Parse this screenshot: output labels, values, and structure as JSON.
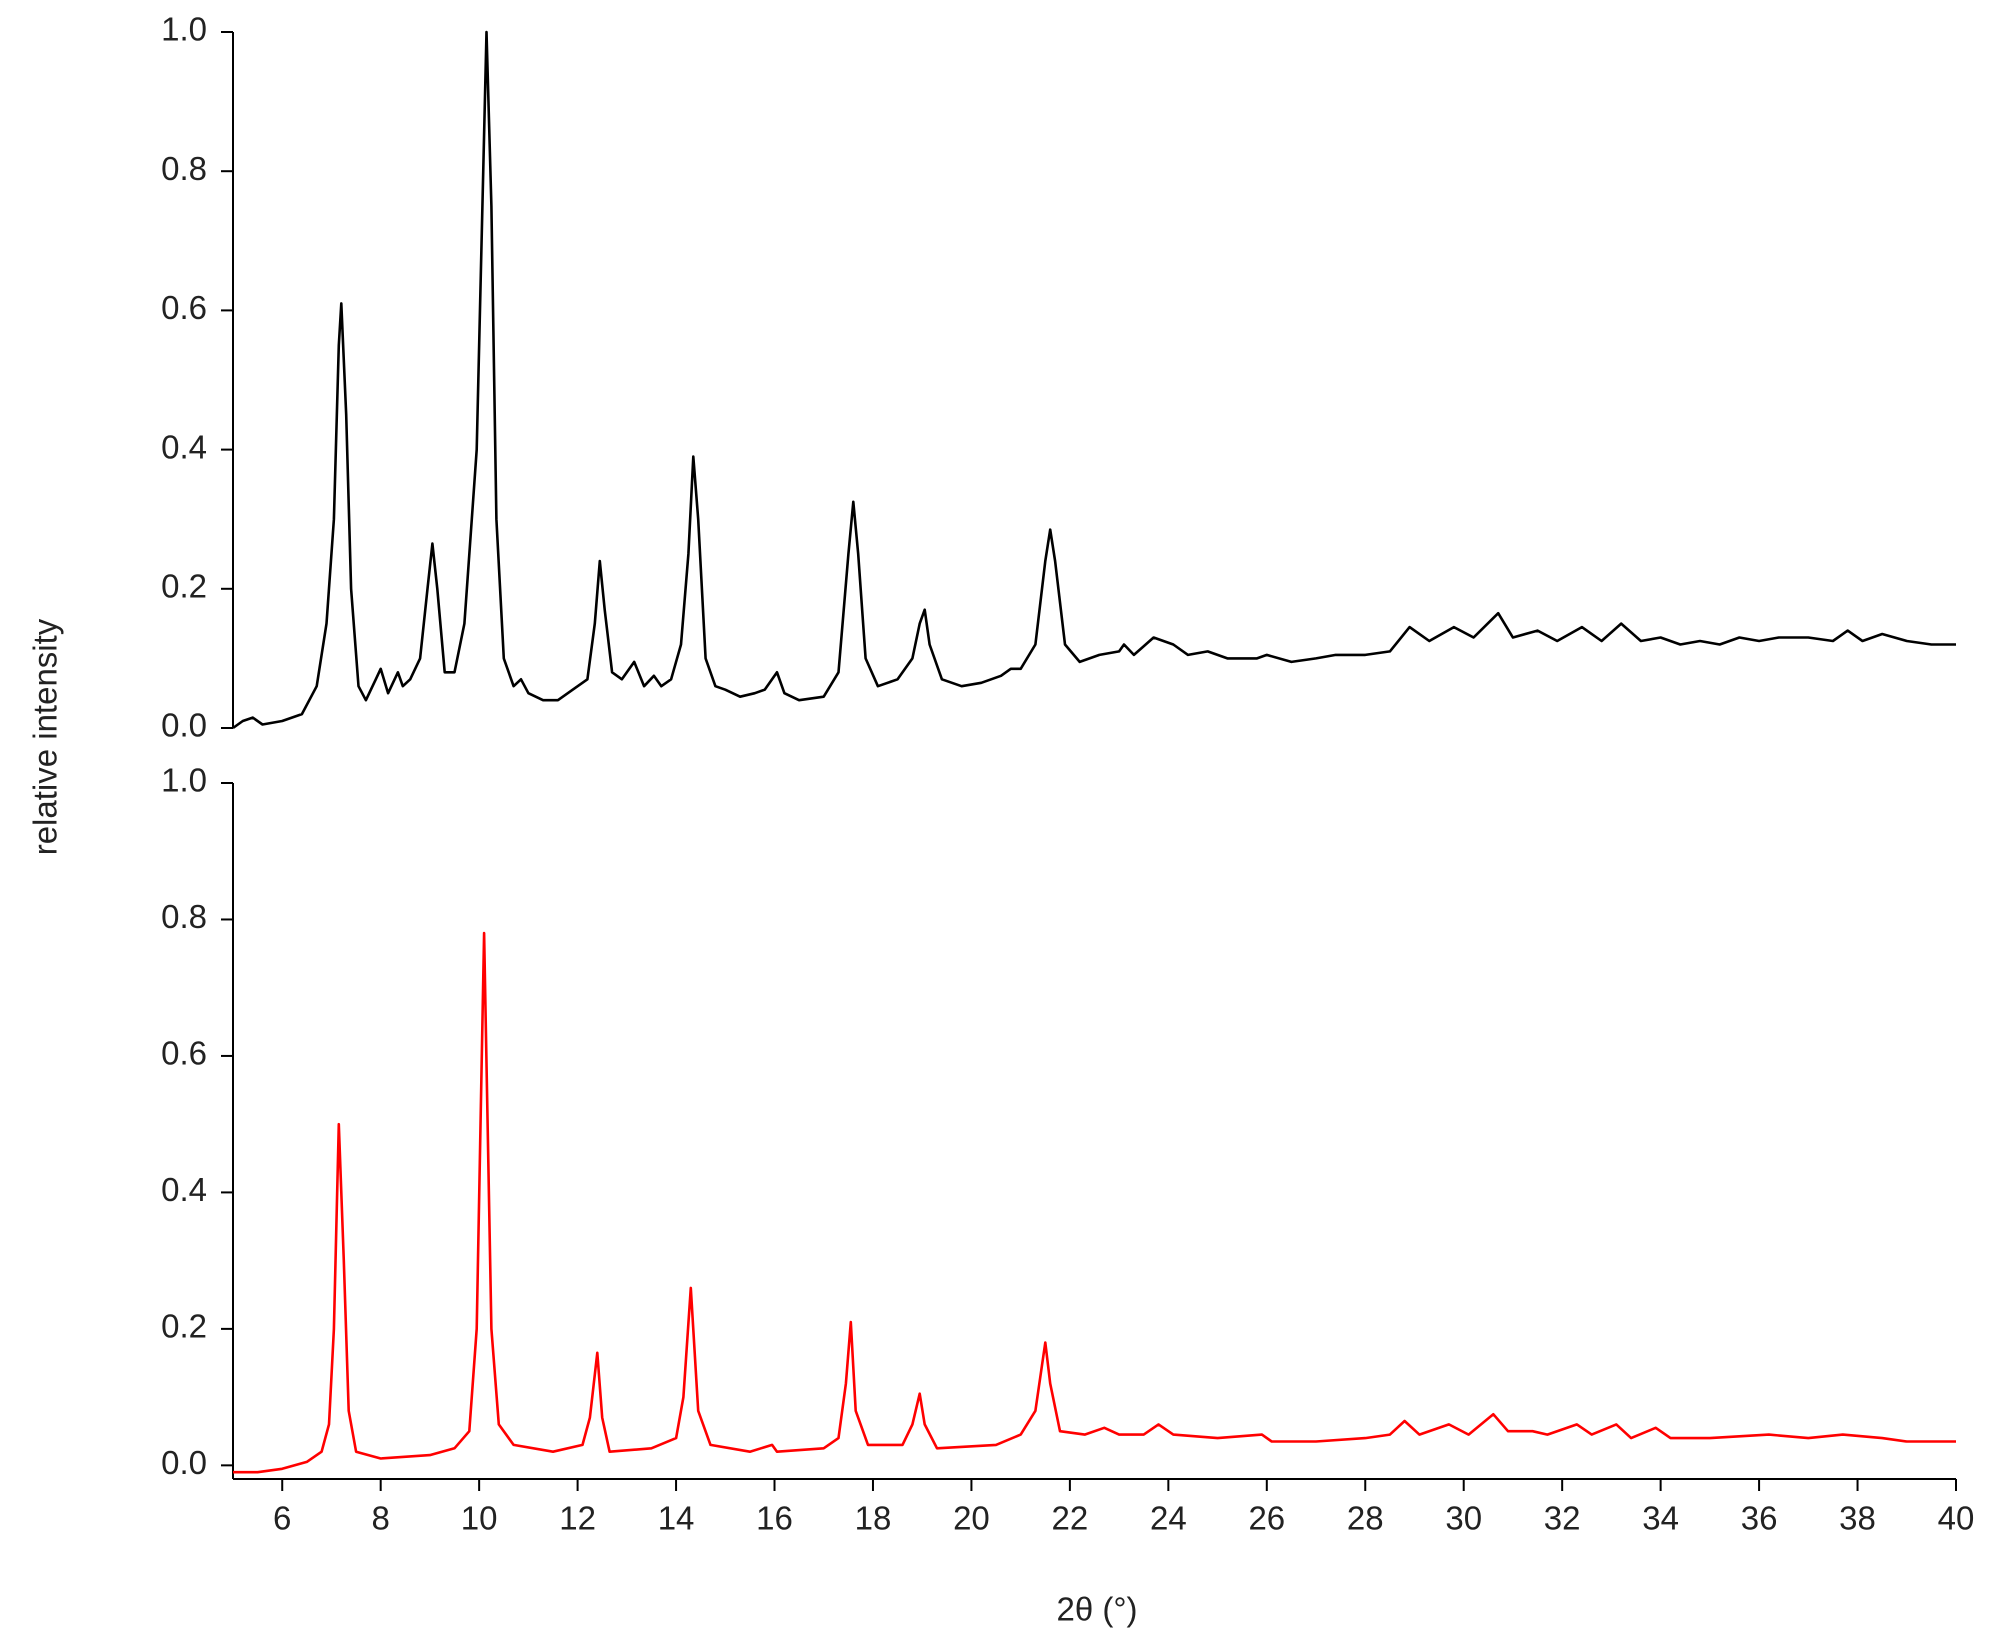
{
  "chart_data": [
    {
      "type": "line",
      "y_label": "relative intensity",
      "xlim": [
        5,
        40
      ],
      "ylim": [
        0,
        1
      ],
      "yticks": [
        {
          "value": 0,
          "label": "0.0"
        },
        0.2,
        0.4,
        0.6,
        0.8,
        {
          "value": 1,
          "label": "1.0"
        }
      ],
      "x": [
        5.0,
        5.2,
        5.4,
        5.6,
        6.0,
        6.4,
        6.7,
        6.9,
        7.05,
        7.15,
        7.2,
        7.3,
        7.4,
        7.55,
        7.7,
        7.9,
        8.0,
        8.15,
        8.35,
        8.45,
        8.6,
        8.8,
        8.95,
        9.05,
        9.15,
        9.3,
        9.5,
        9.7,
        9.85,
        9.95,
        10.05,
        10.15,
        10.25,
        10.35,
        10.5,
        10.7,
        10.85,
        11.0,
        11.3,
        11.6,
        11.9,
        12.2,
        12.35,
        12.45,
        12.55,
        12.7,
        12.9,
        13.15,
        13.35,
        13.55,
        13.7,
        13.9,
        14.1,
        14.25,
        14.35,
        14.45,
        14.6,
        14.8,
        15.0,
        15.3,
        15.6,
        15.8,
        16.05,
        16.2,
        16.5,
        17.0,
        17.3,
        17.5,
        17.6,
        17.7,
        17.85,
        18.1,
        18.5,
        18.8,
        18.95,
        19.05,
        19.15,
        19.4,
        19.8,
        20.2,
        20.6,
        20.8,
        21.0,
        21.3,
        21.5,
        21.6,
        21.7,
        21.9,
        22.2,
        22.6,
        23.0,
        23.1,
        23.3,
        23.7,
        24.1,
        24.4,
        24.8,
        25.2,
        25.8,
        26.0,
        26.5,
        27.0,
        27.4,
        28.0,
        28.5,
        28.9,
        29.3,
        29.8,
        30.2,
        30.7,
        31.0,
        31.5,
        31.9,
        32.4,
        32.8,
        33.2,
        33.6,
        34.0,
        34.4,
        34.8,
        35.2,
        35.6,
        36.0,
        36.4,
        37.0,
        37.5,
        37.8,
        38.1,
        38.5,
        39.0,
        39.5,
        40.0
      ],
      "series": [
        {
          "color": "#000000",
          "values": [
            0.0,
            0.01,
            0.015,
            0.005,
            0.01,
            0.02,
            0.06,
            0.15,
            0.3,
            0.55,
            0.61,
            0.45,
            0.2,
            0.06,
            0.04,
            0.07,
            0.085,
            0.05,
            0.08,
            0.06,
            0.07,
            0.1,
            0.2,
            0.265,
            0.2,
            0.08,
            0.08,
            0.15,
            0.3,
            0.4,
            0.7,
            1.0,
            0.75,
            0.3,
            0.1,
            0.06,
            0.07,
            0.05,
            0.04,
            0.04,
            0.055,
            0.07,
            0.15,
            0.24,
            0.17,
            0.08,
            0.07,
            0.095,
            0.06,
            0.075,
            0.06,
            0.07,
            0.12,
            0.25,
            0.39,
            0.3,
            0.1,
            0.06,
            0.055,
            0.045,
            0.05,
            0.055,
            0.08,
            0.05,
            0.04,
            0.045,
            0.08,
            0.25,
            0.325,
            0.25,
            0.1,
            0.06,
            0.07,
            0.1,
            0.15,
            0.17,
            0.12,
            0.07,
            0.06,
            0.065,
            0.075,
            0.085,
            0.085,
            0.12,
            0.24,
            0.285,
            0.24,
            0.12,
            0.095,
            0.105,
            0.11,
            0.12,
            0.105,
            0.13,
            0.12,
            0.105,
            0.11,
            0.1,
            0.1,
            0.105,
            0.095,
            0.1,
            0.105,
            0.105,
            0.11,
            0.145,
            0.125,
            0.145,
            0.13,
            0.165,
            0.13,
            0.14,
            0.125,
            0.145,
            0.125,
            0.15,
            0.125,
            0.13,
            0.12,
            0.125,
            0.12,
            0.13,
            0.125,
            0.13,
            0.13,
            0.125,
            0.14,
            0.125,
            0.135,
            0.125,
            0.12,
            0.12
          ]
        }
      ]
    },
    {
      "type": "line",
      "x_label": "2θ (°)",
      "xlim": [
        5,
        40
      ],
      "ylim": [
        -0.02,
        1
      ],
      "xticks": [
        6,
        8,
        10,
        12,
        14,
        16,
        18,
        20,
        22,
        24,
        26,
        28,
        30,
        32,
        34,
        36,
        38,
        40
      ],
      "yticks": [
        {
          "value": 0,
          "label": "0.0"
        },
        0.2,
        0.4,
        0.6,
        0.8,
        {
          "value": 1,
          "label": "1.0"
        }
      ],
      "x": [
        5.0,
        5.5,
        6.0,
        6.5,
        6.8,
        6.95,
        7.05,
        7.15,
        7.25,
        7.35,
        7.5,
        8.0,
        9.0,
        9.5,
        9.8,
        9.95,
        10.1,
        10.25,
        10.4,
        10.7,
        11.5,
        12.1,
        12.25,
        12.4,
        12.5,
        12.65,
        13.5,
        14.0,
        14.15,
        14.3,
        14.45,
        14.7,
        15.5,
        15.95,
        16.05,
        17.0,
        17.3,
        17.45,
        17.55,
        17.65,
        17.9,
        18.6,
        18.8,
        18.95,
        19.05,
        19.3,
        20.5,
        21.0,
        21.3,
        21.5,
        21.6,
        21.8,
        22.3,
        22.7,
        23.0,
        23.5,
        23.8,
        24.1,
        25.0,
        25.9,
        26.1,
        27.0,
        28.0,
        28.5,
        28.8,
        29.1,
        29.7,
        30.1,
        30.6,
        30.9,
        31.4,
        31.7,
        32.3,
        32.6,
        33.1,
        33.4,
        33.9,
        34.2,
        35.0,
        36.2,
        37.0,
        37.7,
        38.5,
        39.0,
        40.0
      ],
      "series": [
        {
          "color": "#ff0000",
          "values": [
            -0.01,
            -0.01,
            -0.005,
            0.005,
            0.02,
            0.06,
            0.2,
            0.5,
            0.3,
            0.08,
            0.02,
            0.01,
            0.015,
            0.025,
            0.05,
            0.2,
            0.78,
            0.2,
            0.06,
            0.03,
            0.02,
            0.03,
            0.07,
            0.165,
            0.07,
            0.02,
            0.025,
            0.04,
            0.1,
            0.26,
            0.08,
            0.03,
            0.02,
            0.03,
            0.02,
            0.025,
            0.04,
            0.12,
            0.21,
            0.08,
            0.03,
            0.03,
            0.06,
            0.105,
            0.06,
            0.025,
            0.03,
            0.045,
            0.08,
            0.18,
            0.12,
            0.05,
            0.045,
            0.055,
            0.045,
            0.045,
            0.06,
            0.045,
            0.04,
            0.045,
            0.035,
            0.035,
            0.04,
            0.045,
            0.065,
            0.045,
            0.06,
            0.045,
            0.075,
            0.05,
            0.05,
            0.045,
            0.06,
            0.045,
            0.06,
            0.04,
            0.055,
            0.04,
            0.04,
            0.045,
            0.04,
            0.045,
            0.04,
            0.035,
            0.035
          ]
        }
      ]
    }
  ]
}
